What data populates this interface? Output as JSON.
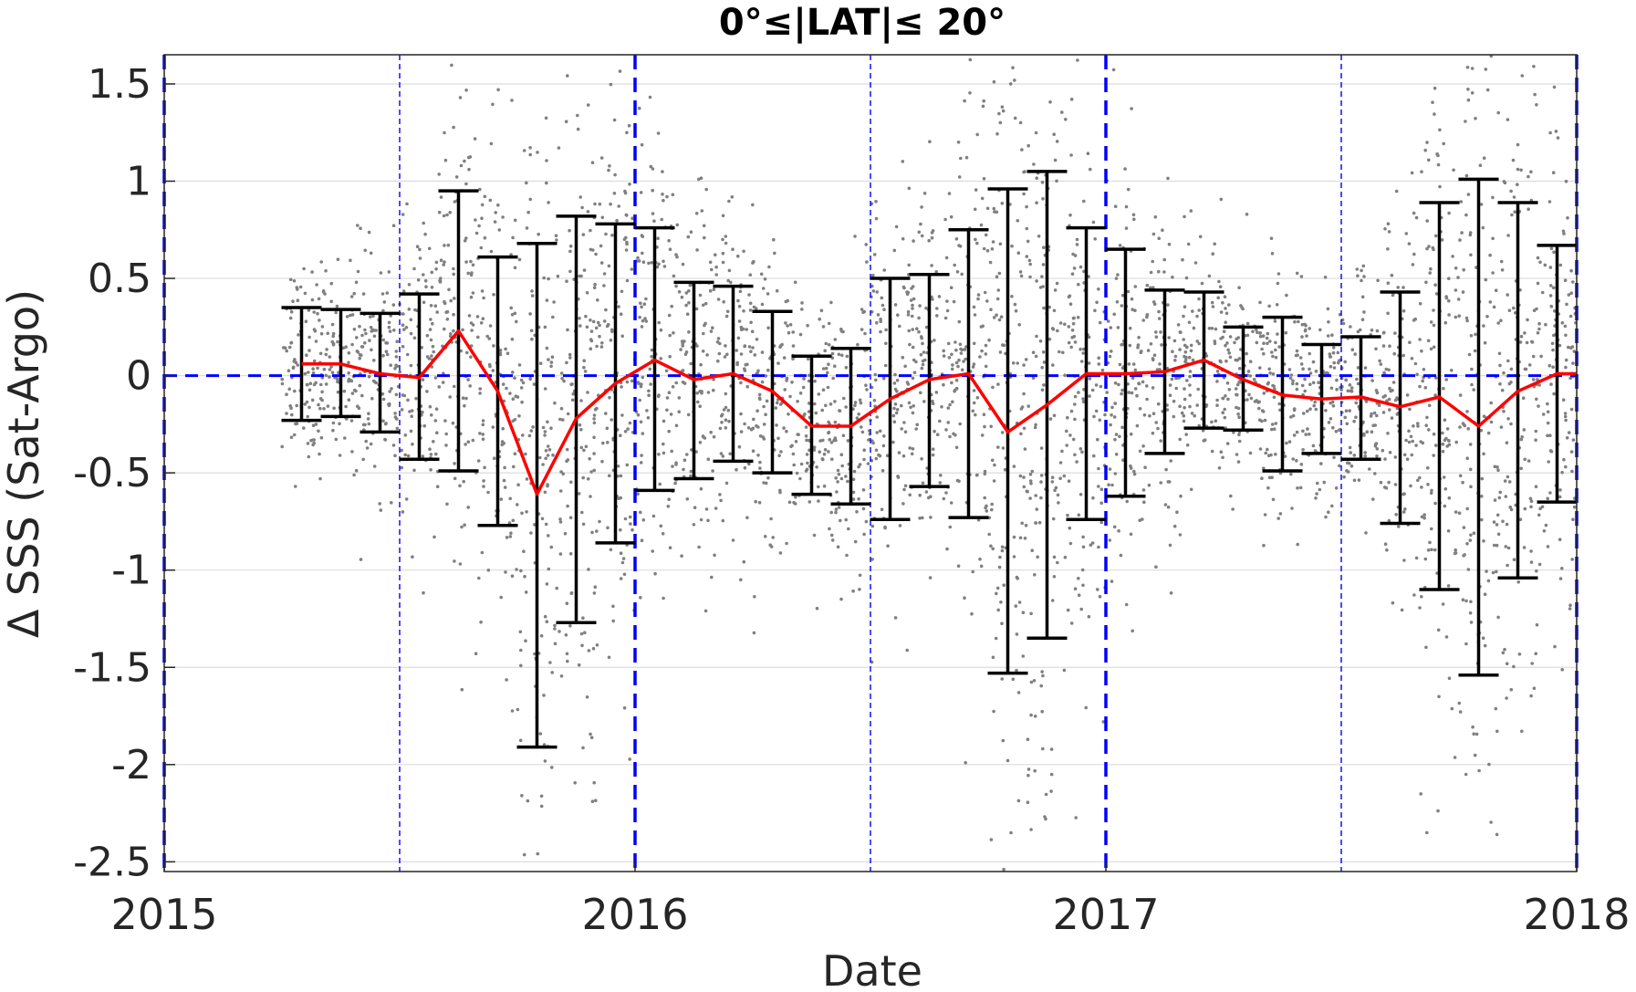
{
  "chart_data": {
    "type": "scatter",
    "title": "0°≤|LAT|≤ 20°",
    "xlabel": "Date",
    "ylabel": "Δ SSS (Sat-Argo)",
    "xlim": [
      2015,
      2018
    ],
    "ylim": [
      -2.55,
      1.65
    ],
    "x_ticks": [
      "2015",
      "2016",
      "2017",
      "2018"
    ],
    "y_ticks": [
      "1.5",
      "1",
      "0.5",
      "0",
      "-0.5",
      "-1",
      "-1.5",
      "-2",
      "-2.5"
    ],
    "grid": "horizontal",
    "colors": {
      "scatter": "#808080",
      "mean_line": "#ff0000",
      "error_bars": "#000000",
      "reference_lines": "#0000ff",
      "grid": "#dcdcdc"
    },
    "reference_lines": {
      "horizontal_zero": 0,
      "year_boundaries_thick": [
        "2015",
        "2016",
        "2017",
        "2018"
      ],
      "mid_year_thin": [
        "2015-07",
        "2016-07",
        "2017-07"
      ]
    },
    "monthly_stats": [
      {
        "month": "2015-04",
        "mean": 0.06,
        "upper": 0.35,
        "lower": -0.23
      },
      {
        "month": "2015-05",
        "mean": 0.06,
        "upper": 0.34,
        "lower": -0.21
      },
      {
        "month": "2015-06",
        "mean": 0.01,
        "upper": 0.32,
        "lower": -0.29
      },
      {
        "month": "2015-07",
        "mean": -0.01,
        "upper": 0.42,
        "lower": -0.43
      },
      {
        "month": "2015-08",
        "mean": 0.23,
        "upper": 0.95,
        "lower": -0.49
      },
      {
        "month": "2015-09",
        "mean": -0.08,
        "upper": 0.61,
        "lower": -0.77
      },
      {
        "month": "2015-10",
        "mean": -0.61,
        "upper": 0.68,
        "lower": -1.91
      },
      {
        "month": "2015-11",
        "mean": -0.22,
        "upper": 0.82,
        "lower": -1.27
      },
      {
        "month": "2015-12",
        "mean": -0.04,
        "upper": 0.78,
        "lower": -0.86
      },
      {
        "month": "2016-01",
        "mean": 0.08,
        "upper": 0.76,
        "lower": -0.59
      },
      {
        "month": "2016-02",
        "mean": -0.02,
        "upper": 0.48,
        "lower": -0.53
      },
      {
        "month": "2016-03",
        "mean": 0.01,
        "upper": 0.46,
        "lower": -0.44
      },
      {
        "month": "2016-04",
        "mean": -0.08,
        "upper": 0.33,
        "lower": -0.5
      },
      {
        "month": "2016-05",
        "mean": -0.26,
        "upper": 0.1,
        "lower": -0.61
      },
      {
        "month": "2016-06",
        "mean": -0.26,
        "upper": 0.14,
        "lower": -0.66
      },
      {
        "month": "2016-07",
        "mean": -0.12,
        "upper": 0.5,
        "lower": -0.74
      },
      {
        "month": "2016-08",
        "mean": -0.02,
        "upper": 0.52,
        "lower": -0.57
      },
      {
        "month": "2016-09",
        "mean": 0.01,
        "upper": 0.75,
        "lower": -0.73
      },
      {
        "month": "2016-10",
        "mean": -0.29,
        "upper": 0.96,
        "lower": -1.53
      },
      {
        "month": "2016-11",
        "mean": -0.15,
        "upper": 1.05,
        "lower": -1.35
      },
      {
        "month": "2016-12",
        "mean": 0.01,
        "upper": 0.76,
        "lower": -0.74
      },
      {
        "month": "2017-01",
        "mean": 0.01,
        "upper": 0.65,
        "lower": -0.62
      },
      {
        "month": "2017-02",
        "mean": 0.02,
        "upper": 0.44,
        "lower": -0.4
      },
      {
        "month": "2017-03",
        "mean": 0.08,
        "upper": 0.43,
        "lower": -0.27
      },
      {
        "month": "2017-04",
        "mean": -0.02,
        "upper": 0.25,
        "lower": -0.28
      },
      {
        "month": "2017-05",
        "mean": -0.1,
        "upper": 0.3,
        "lower": -0.49
      },
      {
        "month": "2017-06",
        "mean": -0.12,
        "upper": 0.16,
        "lower": -0.4
      },
      {
        "month": "2017-07",
        "mean": -0.11,
        "upper": 0.2,
        "lower": -0.43
      },
      {
        "month": "2017-08",
        "mean": -0.16,
        "upper": 0.43,
        "lower": -0.76
      },
      {
        "month": "2017-09",
        "mean": -0.11,
        "upper": 0.89,
        "lower": -1.1
      },
      {
        "month": "2017-10",
        "mean": -0.26,
        "upper": 1.01,
        "lower": -1.54
      },
      {
        "month": "2017-11",
        "mean": -0.08,
        "upper": 0.89,
        "lower": -1.04
      },
      {
        "month": "2017-12",
        "mean": 0.01,
        "upper": 0.67,
        "lower": -0.65
      }
    ]
  }
}
